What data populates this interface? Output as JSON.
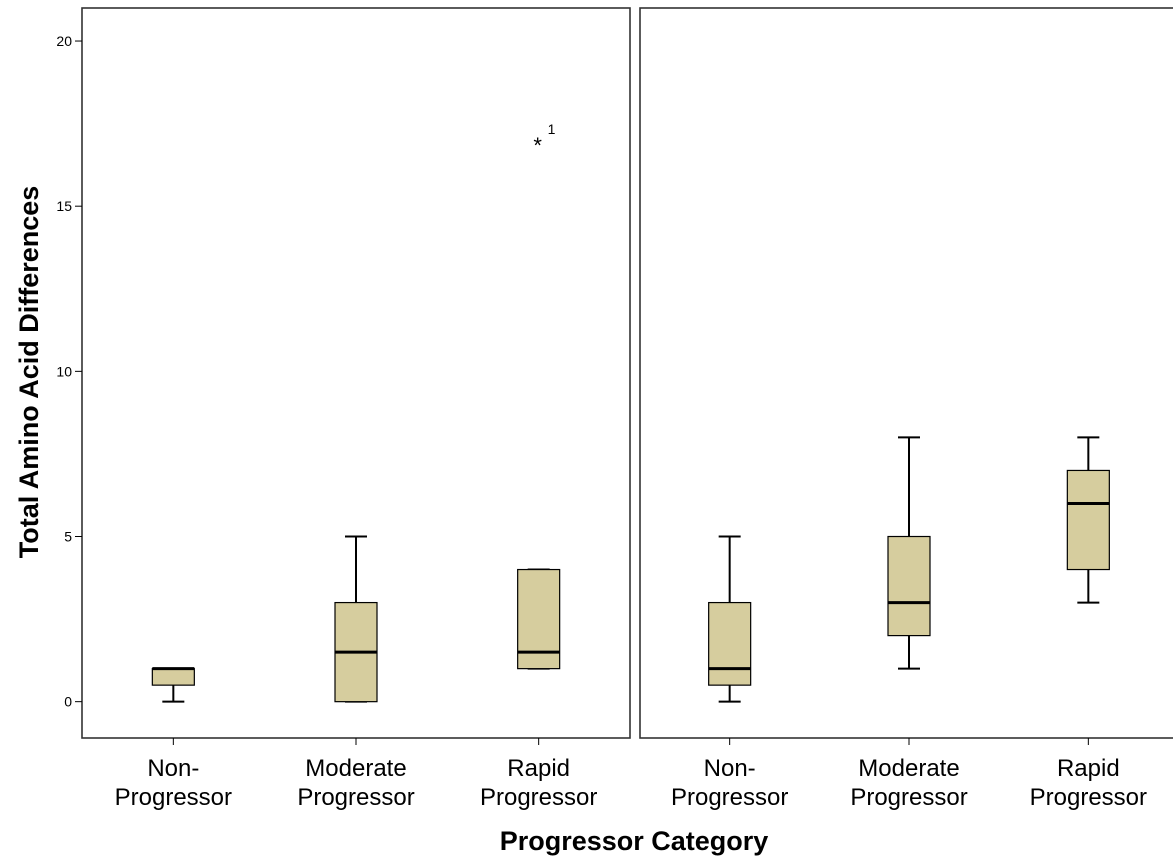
{
  "chart_data": {
    "type": "boxplot",
    "xlabel": "Progressor Category",
    "ylabel": "Total Amino Acid Differences",
    "ylim": [
      -1.1,
      21
    ],
    "yticks": [
      0,
      5,
      10,
      15,
      20
    ],
    "grid": false,
    "legend": "none",
    "colors": {
      "box_fill": "#d6cd9e",
      "box_stroke": "#000000",
      "background": "#ffffff"
    },
    "panels": [
      {
        "categories": [
          {
            "label": [
              "Non-",
              "Progressor"
            ],
            "q1": 0.5,
            "median": 1,
            "q3": 1,
            "whisker_low": 0,
            "whisker_high": 1
          },
          {
            "label": [
              "Moderate",
              "Progressor"
            ],
            "q1": 0,
            "median": 1.5,
            "q3": 3,
            "whisker_low": 0,
            "whisker_high": 5
          },
          {
            "label": [
              "Rapid",
              "Progressor"
            ],
            "q1": 1,
            "median": 1.5,
            "q3": 4,
            "whisker_low": 1,
            "whisker_high": 4,
            "outliers": [
              {
                "y": 17,
                "marker": "*",
                "label": "1"
              }
            ]
          }
        ]
      },
      {
        "categories": [
          {
            "label": [
              "Non-",
              "Progressor"
            ],
            "q1": 0.5,
            "median": 1,
            "q3": 3,
            "whisker_low": 0,
            "whisker_high": 5
          },
          {
            "label": [
              "Moderate",
              "Progressor"
            ],
            "q1": 2,
            "median": 3,
            "q3": 5,
            "whisker_low": 1,
            "whisker_high": 8
          },
          {
            "label": [
              "Rapid",
              "Progressor"
            ],
            "q1": 4,
            "median": 6,
            "q3": 7,
            "whisker_low": 3,
            "whisker_high": 8
          }
        ]
      }
    ]
  }
}
